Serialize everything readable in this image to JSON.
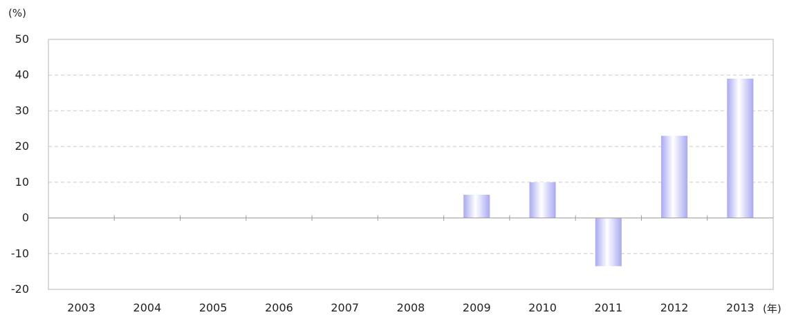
{
  "chart_data": {
    "type": "bar",
    "title": "",
    "y_unit_label": "(%)",
    "x_unit_label": "(年)",
    "categories": [
      "2003",
      "2004",
      "2005",
      "2006",
      "2007",
      "2008",
      "2009",
      "2010",
      "2011",
      "2012",
      "2013"
    ],
    "values": [
      null,
      null,
      null,
      null,
      null,
      null,
      6.5,
      10,
      -13.5,
      23,
      39
    ],
    "ylim": [
      -20,
      50
    ],
    "yticks": [
      50,
      40,
      30,
      20,
      10,
      0,
      -10,
      -20
    ],
    "grid": "horizontal-dashed",
    "legend": "none",
    "colors": {
      "bar_edge": "#a9a9f2",
      "bar_center": "#ffffff",
      "grid": "#c8c8c8",
      "axis": "#999999"
    }
  }
}
